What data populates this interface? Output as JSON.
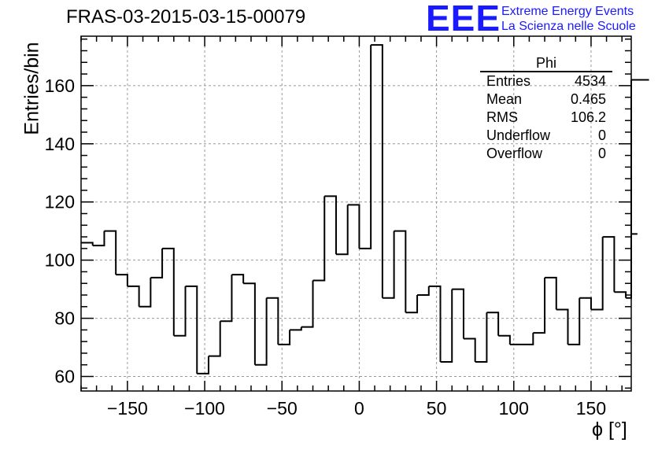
{
  "header": {
    "title": "FRAS-03-2015-03-15-00079",
    "logo": "EEE",
    "org_line1": "Extreme Energy Events",
    "org_line2": "La Scienza nelle Scuole"
  },
  "stats_box": {
    "name": "Phi",
    "rows": [
      {
        "label": "Entries",
        "value": "4534"
      },
      {
        "label": "Mean",
        "value": "0.465"
      },
      {
        "label": "RMS",
        "value": "106.2"
      },
      {
        "label": "Underflow",
        "value": "0"
      },
      {
        "label": "Overflow",
        "value": "0"
      }
    ]
  },
  "colors": {
    "logo": "#1a1aff",
    "line": "#000000",
    "grid": "#999999"
  },
  "chart_data": {
    "type": "bar",
    "style": "step-histogram",
    "title": "FRAS-03-2015-03-15-00079",
    "xlabel": "ϕ [°]",
    "ylabel": "Entries/bin",
    "xlim": [
      -180,
      176
    ],
    "ylim": [
      55,
      177
    ],
    "xticks": [
      -150,
      -100,
      -50,
      0,
      50,
      100,
      150
    ],
    "yticks": [
      60,
      80,
      100,
      120,
      140,
      160
    ],
    "grid": true,
    "bin_width": 7.5,
    "bin_edges_start": -180,
    "values": [
      106,
      105,
      110,
      95,
      91,
      84,
      94,
      104,
      74,
      91,
      61,
      67,
      79,
      95,
      92,
      64,
      87,
      71,
      76,
      77,
      93,
      122,
      102,
      119,
      104,
      174,
      87,
      110,
      82,
      88,
      91,
      65,
      90,
      73,
      65,
      82,
      74,
      71,
      71,
      75,
      94,
      83,
      71,
      87,
      83,
      108,
      89,
      87,
      109,
      162
    ]
  }
}
